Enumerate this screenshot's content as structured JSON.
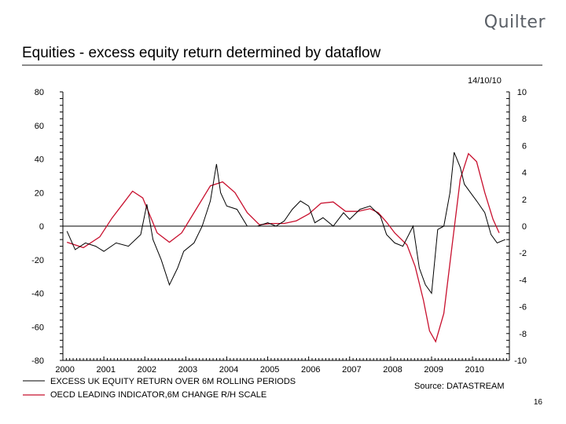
{
  "brand": {
    "logo_text": "Quilter"
  },
  "slide": {
    "title": "Equities - excess equity return determined by dataflow",
    "page_number": "16"
  },
  "chart_data": {
    "type": "line",
    "date_label": "14/10/10",
    "source": "Source: DATASTREAM",
    "x_ticks": [
      "2000",
      "2001",
      "2002",
      "2003",
      "2004",
      "2005",
      "2006",
      "2007",
      "2008",
      "2009",
      "2010"
    ],
    "x_range": [
      2000,
      2010.9
    ],
    "y_left": {
      "ticks": [
        "80",
        "60",
        "40",
        "20",
        "0",
        "-20",
        "-40",
        "-60",
        "-80"
      ],
      "range": [
        -80,
        80
      ]
    },
    "y_right": {
      "ticks": [
        "10",
        "8",
        "6",
        "4",
        "2",
        "0",
        "-2",
        "-4",
        "-6",
        "-8",
        "-10"
      ],
      "range": [
        -10,
        10
      ]
    },
    "zero_line": true,
    "legend_position": "bottom-left",
    "series": [
      {
        "name": "EXCESS UK EQUITY RETURN OVER 6M ROLLING PERIODS",
        "axis": "left",
        "color": "#000000",
        "x": [
          2000.1,
          2000.3,
          2000.55,
          2000.8,
          2001.0,
          2001.3,
          2001.6,
          2001.9,
          2002.05,
          2002.2,
          2002.4,
          2002.6,
          2002.8,
          2002.95,
          2003.2,
          2003.4,
          2003.6,
          2003.75,
          2003.85,
          2004.0,
          2004.25,
          2004.5,
          2004.75,
          2005.0,
          2005.2,
          2005.4,
          2005.6,
          2005.8,
          2006.0,
          2006.15,
          2006.35,
          2006.6,
          2006.85,
          2007.0,
          2007.25,
          2007.5,
          2007.75,
          2007.9,
          2008.1,
          2008.3,
          2008.55,
          2008.7,
          2008.85,
          2009.0,
          2009.15,
          2009.3,
          2009.45,
          2009.55,
          2009.7,
          2009.8,
          2009.95,
          2010.1,
          2010.3,
          2010.45,
          2010.6,
          2010.8
        ],
        "y": [
          -3,
          -14,
          -10,
          -12,
          -15,
          -10,
          -12,
          -5,
          13,
          -8,
          -20,
          -35,
          -25,
          -15,
          -10,
          0,
          15,
          37,
          20,
          12,
          10,
          0,
          0,
          2,
          0,
          3,
          10,
          15,
          12,
          2,
          5,
          0,
          8,
          4,
          10,
          12,
          6,
          -5,
          -10,
          -12,
          0,
          -25,
          -35,
          -40,
          -2,
          0,
          20,
          44,
          35,
          25,
          20,
          15,
          8,
          -5,
          -10,
          -8
        ]
      },
      {
        "name": "OECD LEADING INDICATOR,6M CHANGE R/H SCALE",
        "axis": "right",
        "color": "#c8102e",
        "x": [
          2000.1,
          2000.5,
          2000.9,
          2001.2,
          2001.5,
          2001.7,
          2001.95,
          2002.3,
          2002.6,
          2002.9,
          2003.2,
          2003.6,
          2003.9,
          2004.2,
          2004.5,
          2004.8,
          2005.1,
          2005.4,
          2005.7,
          2006.0,
          2006.3,
          2006.6,
          2006.9,
          2007.2,
          2007.5,
          2007.7,
          2007.9,
          2008.1,
          2008.4,
          2008.6,
          2008.8,
          2008.95,
          2009.1,
          2009.3,
          2009.5,
          2009.7,
          2009.9,
          2010.1,
          2010.3,
          2010.5,
          2010.65
        ],
        "y": [
          -1.2,
          -1.6,
          -0.8,
          0.6,
          1.8,
          2.6,
          2.1,
          -0.5,
          -1.2,
          -0.5,
          1.0,
          3.0,
          3.3,
          2.5,
          1.0,
          0.1,
          0.2,
          0.2,
          0.4,
          0.9,
          1.7,
          1.8,
          1.1,
          1.1,
          1.3,
          1.0,
          0.3,
          -0.5,
          -1.4,
          -3.0,
          -5.5,
          -7.8,
          -8.6,
          -6.5,
          -1.5,
          3.5,
          5.4,
          4.8,
          2.5,
          0.5,
          -0.5
        ]
      }
    ]
  }
}
